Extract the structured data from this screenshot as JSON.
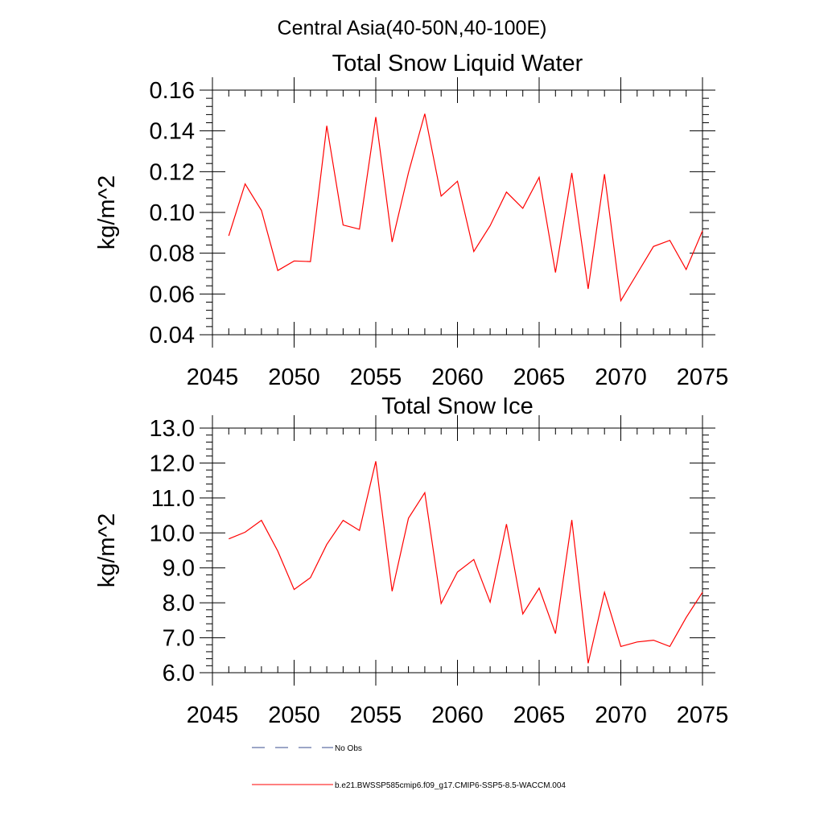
{
  "suptitle": "Central Asia(40-50N,40-100E)",
  "chart_data": [
    {
      "type": "line",
      "title": "Total Snow Liquid Water",
      "xlabel": "",
      "ylabel": "kg/m^2",
      "xlim": [
        2045,
        2075
      ],
      "ylim": [
        0.04,
        0.16
      ],
      "xticks": [
        2045,
        2050,
        2055,
        2060,
        2065,
        2070,
        2075
      ],
      "xtick_labels": [
        "2045",
        "2050",
        "2055",
        "2060",
        "2065",
        "2070",
        "2075"
      ],
      "yticks": [
        0.04,
        0.06,
        0.08,
        0.1,
        0.12,
        0.14,
        0.16
      ],
      "ytick_labels": [
        "0.04",
        "0.06",
        "0.08",
        "0.10",
        "0.12",
        "0.14",
        "0.16"
      ],
      "grid": false,
      "series": [
        {
          "name": "b.e21.BWSSP585cmip6.f09_g17.CMIP6-SSP5-8.5-WACCM.004",
          "color": "#ff0000",
          "x": [
            2046,
            2047,
            2048,
            2049,
            2050,
            2051,
            2052,
            2053,
            2054,
            2055,
            2056,
            2057,
            2058,
            2059,
            2060,
            2061,
            2062,
            2063,
            2064,
            2065,
            2066,
            2067,
            2068,
            2069,
            2070,
            2071,
            2072,
            2073,
            2074,
            2075
          ],
          "values": [
            0.0885,
            0.114,
            0.101,
            0.0715,
            0.0762,
            0.0759,
            0.1425,
            0.0938,
            0.0918,
            0.1468,
            0.0855,
            0.1195,
            0.1484,
            0.108,
            0.1153,
            0.0808,
            0.0935,
            0.11,
            0.102,
            0.1172,
            0.0705,
            0.1194,
            0.0625,
            0.1188,
            0.0567,
            0.07,
            0.0833,
            0.0863,
            0.072,
            0.091
          ]
        }
      ]
    },
    {
      "type": "line",
      "title": "Total Snow Ice",
      "xlabel": "",
      "ylabel": "kg/m^2",
      "xlim": [
        2045,
        2075
      ],
      "ylim": [
        6.0,
        13.0
      ],
      "xticks": [
        2045,
        2050,
        2055,
        2060,
        2065,
        2070,
        2075
      ],
      "xtick_labels": [
        "2045",
        "2050",
        "2055",
        "2060",
        "2065",
        "2070",
        "2075"
      ],
      "yticks": [
        6.0,
        7.0,
        8.0,
        9.0,
        10.0,
        11.0,
        12.0,
        13.0
      ],
      "ytick_labels": [
        "6.0",
        "7.0",
        "8.0",
        "9.0",
        "10.0",
        "11.0",
        "12.0",
        "13.0"
      ],
      "grid": false,
      "series": [
        {
          "name": "b.e21.BWSSP585cmip6.f09_g17.CMIP6-SSP5-8.5-WACCM.004",
          "color": "#ff0000",
          "x": [
            2046,
            2047,
            2048,
            2049,
            2050,
            2051,
            2052,
            2053,
            2054,
            2055,
            2056,
            2057,
            2058,
            2059,
            2060,
            2061,
            2062,
            2063,
            2064,
            2065,
            2066,
            2067,
            2068,
            2069,
            2070,
            2071,
            2072,
            2073,
            2074,
            2075
          ],
          "values": [
            9.83,
            10.02,
            10.36,
            9.48,
            8.38,
            8.72,
            9.67,
            10.36,
            10.07,
            12.05,
            8.33,
            10.42,
            11.15,
            7.98,
            8.88,
            9.24,
            8.02,
            10.25,
            7.68,
            8.42,
            7.12,
            10.37,
            6.27,
            8.3,
            6.75,
            6.88,
            6.93,
            6.75,
            7.58,
            8.3
          ]
        }
      ]
    }
  ],
  "legend": {
    "placement": "bottom-center",
    "entries": [
      {
        "label": "No Obs",
        "color": "#3a4d8f",
        "style": "dashed"
      },
      {
        "label": "b.e21.BWSSP585cmip6.f09_g17.CMIP6-SSP5-8.5-WACCM.004",
        "color": "#ff0000",
        "style": "solid"
      }
    ]
  }
}
